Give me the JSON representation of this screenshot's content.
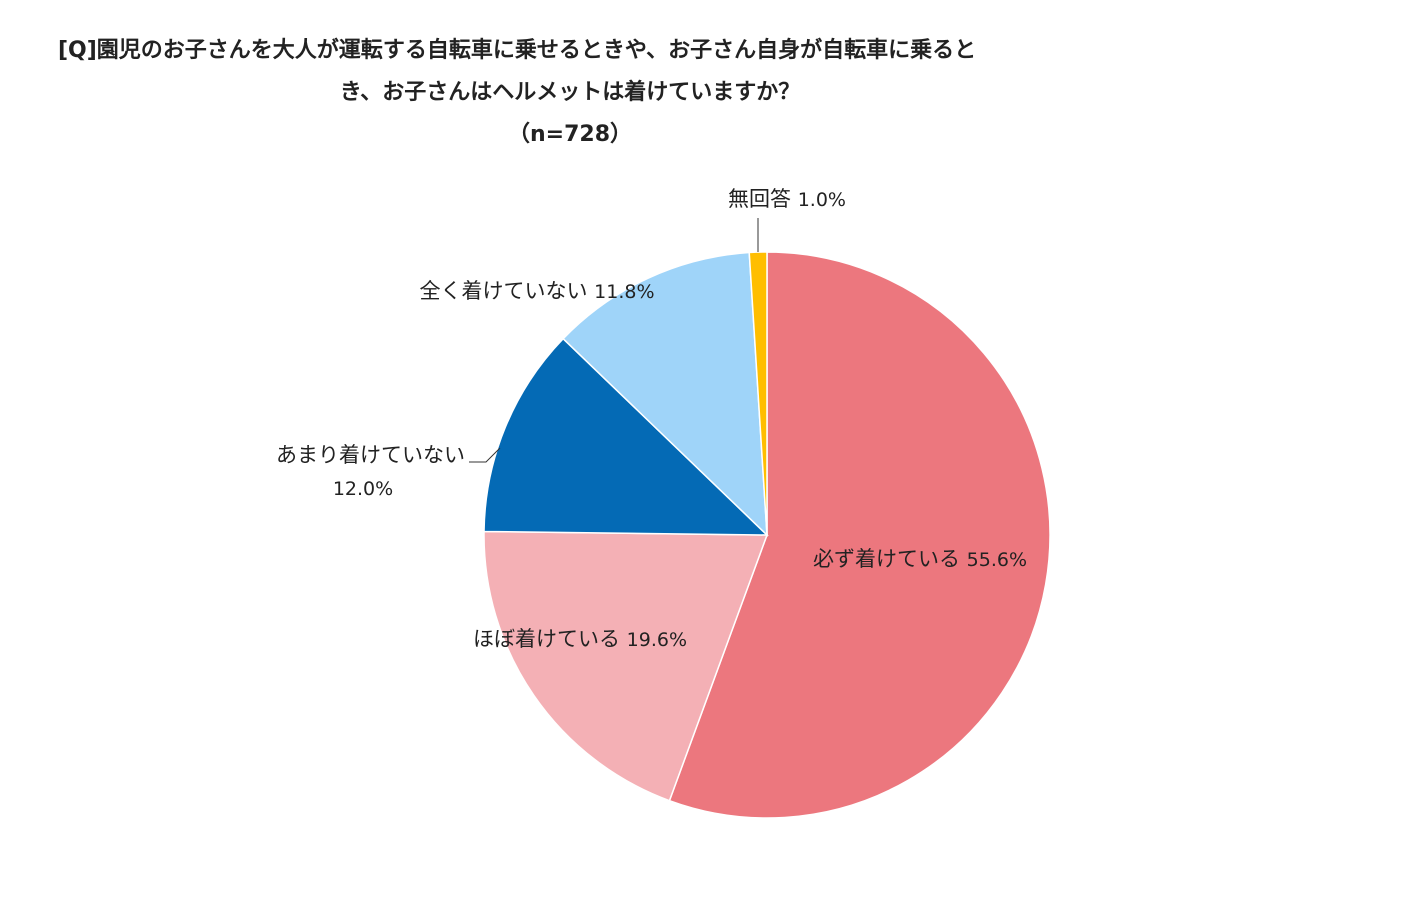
{
  "chart_data": {
    "type": "pie",
    "title": "[Q]園児のお子さんを大人が運転する自転車に乗せるときや、お子さん自身が自転車に乗るとき、お子さんはヘルメットは着けていますか？",
    "title_lines": [
      "[Q]園児のお子さんを大人が運転する自転車に乗せるときや、お子さん自身が自転車に乗ると",
      "き、お子さんはヘルメットは着けていますか？",
      "（n=728）"
    ],
    "subtitle": "（n=728）",
    "slices": [
      {
        "label": "必ず着けている",
        "value": 55.6,
        "value_text": "55.6%",
        "color": "#EC777E"
      },
      {
        "label": "ほぼ着けている",
        "value": 19.6,
        "value_text": "19.6%",
        "color": "#F4B0B5"
      },
      {
        "label": "あまり着けていない",
        "value": 12.0,
        "value_text": "12.0%",
        "color": "#046AB5"
      },
      {
        "label": "全く着けていない",
        "value": 11.8,
        "value_text": "11.8%",
        "color": "#9FD4F9"
      },
      {
        "label": "無回答",
        "value": 1.0,
        "value_text": "1.0%",
        "color": "#FFBE00"
      }
    ],
    "start": "12 o'clock",
    "direction": "clockwise",
    "legend": "none"
  }
}
